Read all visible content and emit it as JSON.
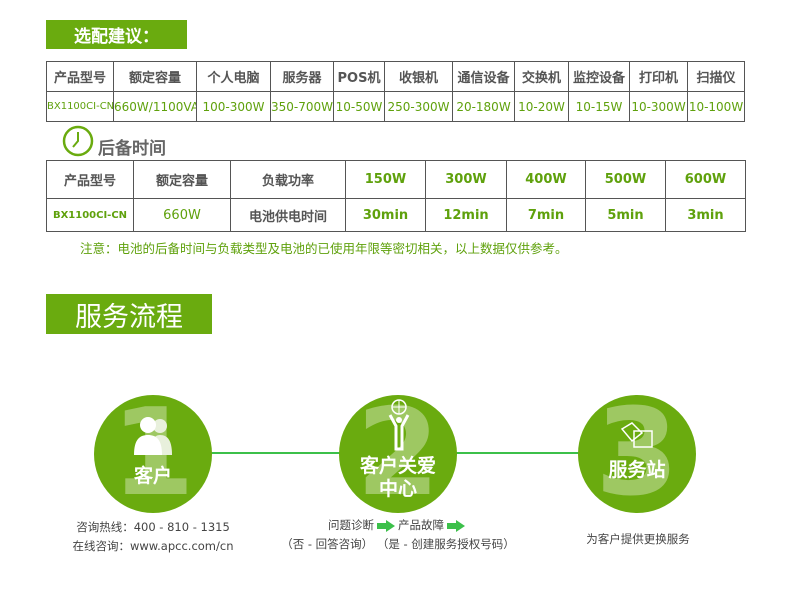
{
  "section1": {
    "title": "选配建议："
  },
  "table1": {
    "headers": [
      "产品型号",
      "额定容量",
      "个人电脑",
      "服务器",
      "POS机",
      "收银机",
      "通信设备",
      "交换机",
      "监控设备",
      "打印机",
      "扫描仪"
    ],
    "row": [
      "BX1100CI-CN",
      "660W/1100VA",
      "100-300W",
      "350-700W",
      "10-50W",
      "250-300W",
      "20-180W",
      "10-20W",
      "10-15W",
      "10-300W",
      "10-100W"
    ]
  },
  "section2": {
    "title": "后备时间",
    "icon": "clock-icon"
  },
  "table2": {
    "headers": [
      "产品型号",
      "额定容量",
      "负载功率",
      "150W",
      "300W",
      "400W",
      "500W",
      "600W"
    ],
    "row": [
      "BX1100CI-CN",
      "660W",
      "电池供电时间",
      "30min",
      "12min",
      "7min",
      "5min",
      "3min"
    ]
  },
  "note": "注意：电池的后备时间与负载类型及电池的已使用年限等密切相关，以上数据仅供参考。",
  "section3": {
    "title": "服务流程"
  },
  "steps": [
    {
      "number": "1",
      "label": "客户",
      "icon": "users-icon",
      "lines": [
        "咨询热线：400 - 810 - 1315",
        "在线咨询：www.apcc.com/cn"
      ]
    },
    {
      "number": "2",
      "label": "客户关爱",
      "label2": "中心",
      "icon": "person-globe-icon",
      "flow": [
        "问题诊断",
        "产品故障"
      ],
      "sub": "（否 - 回答咨询）  （是 - 创建服务授权号码）"
    },
    {
      "number": "3",
      "label": "服务站",
      "icon": "boxes-icon",
      "lines": [
        "为客户提供更换服务"
      ]
    }
  ],
  "colors": {
    "accent": "#6aab0f",
    "text_green": "#5fa10c",
    "arrow": "#3cc04a"
  }
}
